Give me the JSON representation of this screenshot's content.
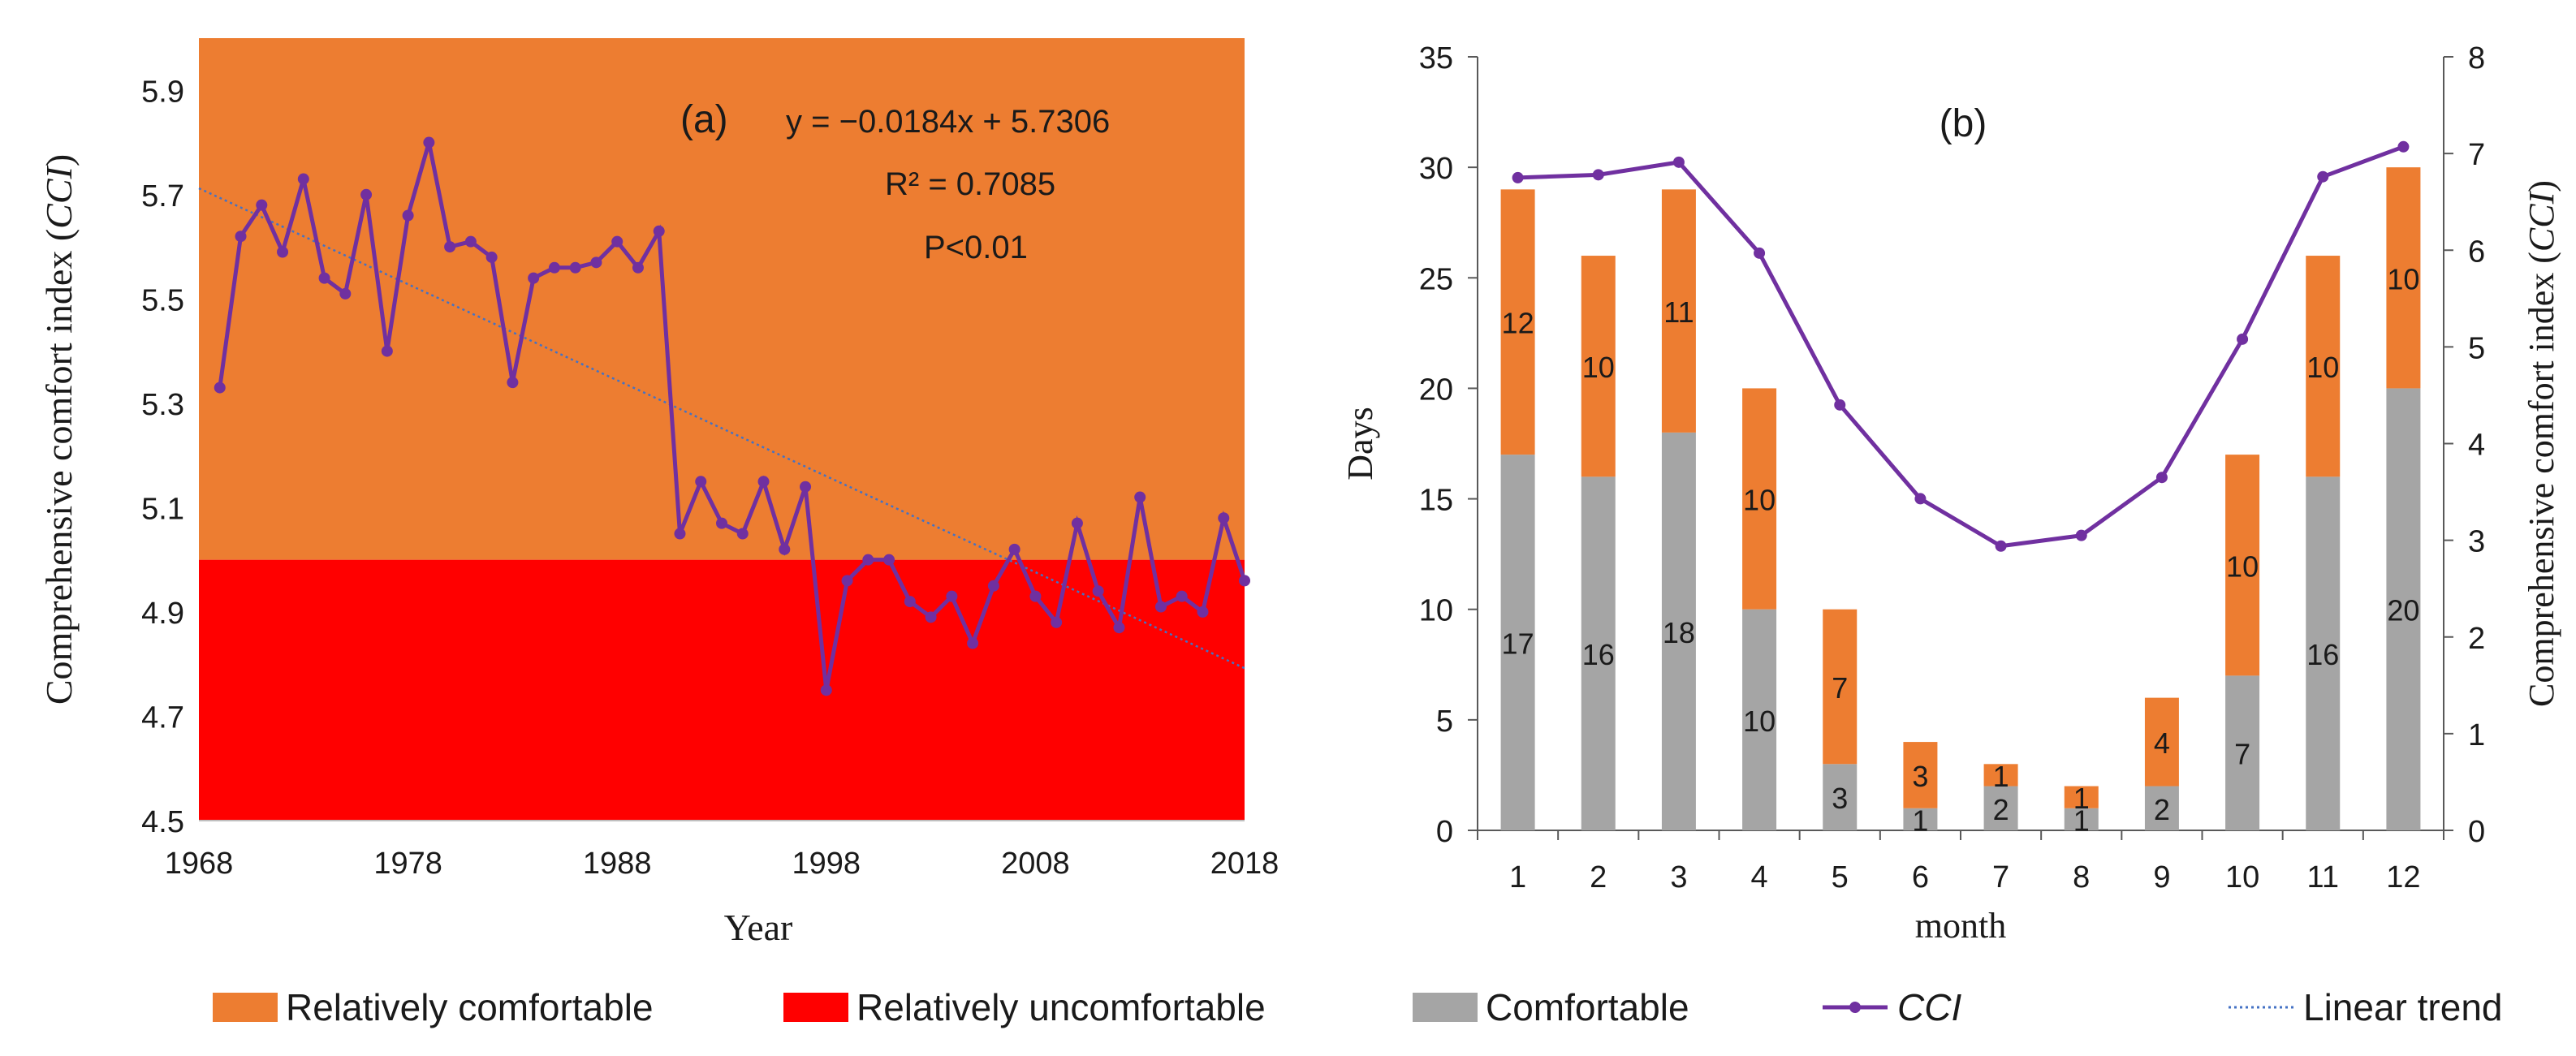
{
  "colors": {
    "comfortable_band": "#ED7D31",
    "uncomfortable_band": "#FF0000",
    "comfortable_bar": "#A5A5A5",
    "cci_line": "#7030A0",
    "trend_line": "#4472C4"
  },
  "chart_data": [
    {
      "type": "line",
      "panel_label": "(a)",
      "title": "",
      "xlabel": "Year",
      "ylabel": "Comprehensive comfort index",
      "ylabel_abbr": "CCI",
      "xlim": [
        1968,
        2018
      ],
      "ylim": [
        4.5,
        6.0
      ],
      "x_ticks": [
        "1968",
        "1978",
        "1988",
        "1998",
        "2008",
        "2018"
      ],
      "y_ticks": [
        "4.5",
        "4.7",
        "4.9",
        "5.1",
        "5.3",
        "5.5",
        "5.7",
        "5.9"
      ],
      "bands": [
        {
          "name": "Relatively comfortable",
          "from": 5.0,
          "to": 6.0
        },
        {
          "name": "Relatively uncomfortable",
          "from": 4.5,
          "to": 5.0
        }
      ],
      "series": [
        {
          "name": "CCI",
          "x": [
            1969,
            1970,
            1971,
            1972,
            1973,
            1974,
            1975,
            1976,
            1977,
            1978,
            1979,
            1980,
            1981,
            1982,
            1983,
            1984,
            1985,
            1986,
            1987,
            1988,
            1989,
            1990,
            1991,
            1992,
            1993,
            1994,
            1995,
            1996,
            1997,
            1998,
            1999,
            2000,
            2001,
            2002,
            2003,
            2004,
            2005,
            2006,
            2007,
            2008,
            2009,
            2010,
            2011,
            2012,
            2013,
            2014,
            2015,
            2016,
            2017,
            2018
          ],
          "values": [
            5.33,
            5.62,
            5.68,
            5.59,
            5.73,
            5.54,
            5.51,
            5.7,
            5.4,
            5.66,
            5.8,
            5.6,
            5.61,
            5.58,
            5.34,
            5.54,
            5.56,
            5.56,
            5.57,
            5.61,
            5.56,
            5.63,
            5.05,
            5.15,
            5.07,
            5.05,
            5.15,
            5.02,
            5.14,
            4.75,
            4.96,
            5.0,
            5.0,
            4.92,
            4.89,
            4.93,
            4.84,
            4.95,
            5.02,
            4.93,
            4.88,
            5.07,
            4.94,
            4.87,
            5.12,
            4.91,
            4.93,
            4.9,
            5.08,
            4.96
          ]
        }
      ],
      "trend": {
        "name": "Linear trend",
        "equation": "y = −0.0184x + 5.7306",
        "r2": "R² = 0.7085",
        "p": "P<0.01",
        "slope": -0.0184,
        "intercept": 5.7306,
        "x_start": 1968
      }
    },
    {
      "type": "bar",
      "stacked": true,
      "panel_label": "(b)",
      "title": "",
      "xlabel": "month",
      "ylabel": "Days",
      "y2label": "Comprehensive comfort index",
      "y2label_abbr": "CCI",
      "categories": [
        "1",
        "2",
        "3",
        "4",
        "5",
        "6",
        "7",
        "8",
        "9",
        "10",
        "11",
        "12"
      ],
      "ylim": [
        0,
        35
      ],
      "y_ticks": [
        "0",
        "5",
        "10",
        "15",
        "20",
        "25",
        "30",
        "35"
      ],
      "y2lim": [
        0,
        8
      ],
      "y2_ticks": [
        "0",
        "1",
        "2",
        "3",
        "4",
        "5",
        "6",
        "7",
        "8"
      ],
      "series": [
        {
          "name": "Comfortable",
          "values": [
            17,
            16,
            18,
            10,
            3,
            1,
            2,
            1,
            2,
            7,
            16,
            20
          ]
        },
        {
          "name": "Relatively comfortable",
          "values": [
            12,
            10,
            11,
            10,
            7,
            3,
            1,
            1,
            4,
            10,
            10,
            10
          ]
        },
        {
          "name": "CCI",
          "axis": "right",
          "values": [
            6.75,
            6.78,
            6.91,
            5.97,
            4.4,
            3.43,
            2.94,
            3.05,
            3.65,
            5.08,
            6.76,
            7.07
          ]
        }
      ]
    }
  ],
  "legend": [
    {
      "key": "comfortable_band",
      "label": "Relatively comfortable",
      "kind": "box"
    },
    {
      "key": "uncomfortable_band",
      "label": "Relatively uncomfortable",
      "kind": "box"
    },
    {
      "key": "comfortable_bar",
      "label": "Comfortable",
      "kind": "box"
    },
    {
      "key": "cci_line",
      "label": "CCI",
      "kind": "line-marker"
    },
    {
      "key": "trend_line",
      "label": "Linear trend",
      "kind": "dotted"
    }
  ]
}
